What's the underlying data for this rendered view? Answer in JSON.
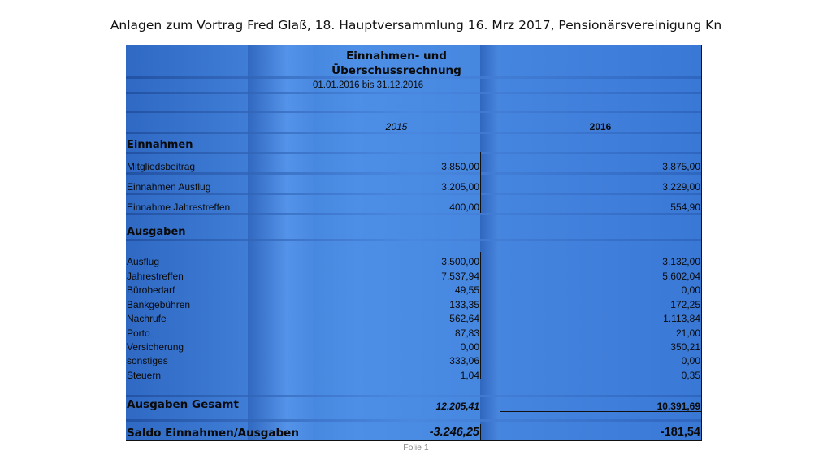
{
  "slide": {
    "title": "Anlagen zum Vortrag Fred Glaß, 18. Hauptversammlung 16. Mrz 2017, Pensionärsvereinigung Kn",
    "footer": "Folie 1"
  },
  "sheet": {
    "heading_line1": "Einnahmen- und",
    "heading_line2": "Überschussrechnung",
    "period": "01.01.2016 bis 31.12.2016",
    "year_prev": "2015",
    "year_curr": "2016",
    "income": {
      "title": "Einnahmen",
      "rows": [
        {
          "label": "Mitgliedsbeitrag",
          "v2015": "3.850,00",
          "v2016": "3.875,00"
        },
        {
          "label": "Einnahmen Ausflug",
          "v2015": "3.205,00",
          "v2016": "3.229,00"
        },
        {
          "label": "Einnahme Jahrestreffen",
          "v2015": "400,00",
          "v2016": "554,90"
        }
      ]
    },
    "expenses": {
      "title": "Ausgaben",
      "rows": [
        {
          "label": "Ausflug",
          "v2015": "3.500,00",
          "v2016": "3.132,00"
        },
        {
          "label": "Jahrestreffen",
          "v2015": "7.537,94",
          "v2016": "5.602,04"
        },
        {
          "label": "Bürobedarf",
          "v2015": "49,55",
          "v2016": "0,00"
        },
        {
          "label": "Bankgebühren",
          "v2015": "133,35",
          "v2016": "172,25"
        },
        {
          "label": "Nachrufe",
          "v2015": "562,64",
          "v2016": "1.113,84"
        },
        {
          "label": "Porto",
          "v2015": "87,83",
          "v2016": "21,00"
        },
        {
          "label": "Versicherung",
          "v2015": "0,00",
          "v2016": "350,21"
        },
        {
          "label": "sonstiges",
          "v2015": "333,06",
          "v2016": "0,00"
        },
        {
          "label": "Steuern",
          "v2015": "1,04",
          "v2016": "0,35"
        }
      ]
    },
    "total_expenses": {
      "label": "Ausgaben Gesamt",
      "v2015": "12.205,41",
      "v2016": "10.391,69"
    },
    "balance": {
      "label": "Saldo Einnahmen/Ausgaben",
      "v2015": "-3.246,25",
      "v2016": "-181,54"
    }
  }
}
